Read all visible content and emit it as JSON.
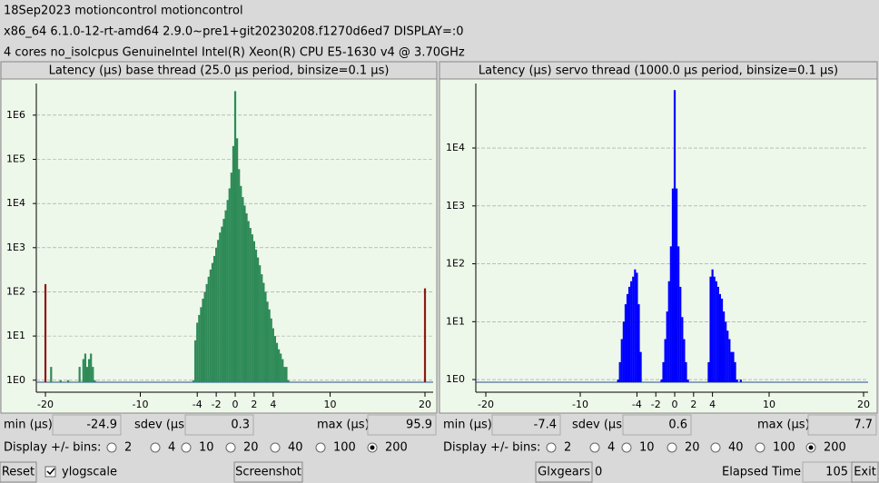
{
  "header": {
    "lines": [
      "18Sep2023 motioncontrol motioncontrol",
      "x86_64  6.1.0-12-rt-amd64  2.9.0~pre1+git20230208.f1270d6ed7  DISPLAY=:0",
      "4 cores  no_isolcpus   GenuineIntel  Intel(R) Xeon(R) CPU E5-1630 v4 @ 3.70GHz"
    ]
  },
  "chart_data": [
    {
      "type": "bar",
      "title": "Latency (µs) base thread (25.0 µs period, binsize=0.1 µs)",
      "log_y": true,
      "grid": true,
      "xlim": [
        -20.96,
        20.86
      ],
      "xticks": [
        -20,
        -10,
        -4,
        -2,
        0,
        2,
        4,
        10,
        20
      ],
      "ylim": [
        0.9,
        5200000
      ],
      "yticks": [
        {
          "value": 1,
          "label": "1E0"
        },
        {
          "value": 10,
          "label": "1E1"
        },
        {
          "value": 100,
          "label": "1E2"
        },
        {
          "value": 1000,
          "label": "1E3"
        },
        {
          "value": 10000,
          "label": "1E4"
        },
        {
          "value": 100000,
          "label": "1E5"
        },
        {
          "value": 1000000,
          "label": "1E6"
        }
      ],
      "series": [
        {
          "color": "#2e8b57",
          "x": [
            -19.4,
            -18.4,
            -17.6,
            -16.4,
            -16.0,
            -15.8,
            -15.6,
            -15.4,
            -15.2,
            -15.0,
            -14.8,
            -4.4,
            -4.2,
            -4.0,
            -3.8,
            -3.6,
            -3.4,
            -3.2,
            -3.0,
            -2.8,
            -2.6,
            -2.4,
            -2.2,
            -2.0,
            -1.8,
            -1.6,
            -1.4,
            -1.2,
            -1.0,
            -0.8,
            -0.6,
            -0.4,
            -0.2,
            0,
            0.2,
            0.4,
            0.6,
            0.8,
            1.0,
            1.2,
            1.4,
            1.6,
            1.8,
            2.0,
            2.2,
            2.4,
            2.6,
            2.8,
            3.0,
            3.2,
            3.4,
            3.6,
            3.8,
            4.0,
            4.2,
            4.4,
            4.6,
            4.8,
            5.0,
            5.2,
            5.4,
            5.6
          ],
          "values": [
            2,
            1,
            1,
            2,
            3,
            4,
            2,
            3,
            4,
            2,
            1,
            1,
            8,
            20,
            30,
            45,
            70,
            100,
            150,
            220,
            320,
            450,
            650,
            1000,
            1500,
            2200,
            3000,
            4500,
            7000,
            12000,
            22000,
            50000,
            200000,
            3500000,
            300000,
            60000,
            25000,
            14000,
            9000,
            6000,
            4000,
            2800,
            2000,
            1400,
            900,
            600,
            400,
            250,
            160,
            100,
            60,
            40,
            25,
            15,
            10,
            7,
            5,
            4,
            3,
            2,
            2,
            1
          ]
        },
        {
          "color": "#8b1a1a",
          "x": [
            -20,
            20
          ],
          "values": [
            150,
            120
          ]
        }
      ]
    },
    {
      "type": "bar",
      "title": "Latency (µs) servo thread (1000.0 µs period, binsize=0.1 µs)",
      "log_y": true,
      "grid": true,
      "xlim": [
        -21.06,
        20.48
      ],
      "xticks": [
        -20,
        -10,
        -4,
        -2,
        0,
        2,
        4,
        10,
        20
      ],
      "ylim": [
        0.9,
        130000
      ],
      "yticks": [
        {
          "value": 1,
          "label": "1E0"
        },
        {
          "value": 10,
          "label": "1E1"
        },
        {
          "value": 100,
          "label": "1E2"
        },
        {
          "value": 1000,
          "label": "1E3"
        },
        {
          "value": 10000,
          "label": "1E4"
        }
      ],
      "series": [
        {
          "color": "#0000ff",
          "x": [
            -6.0,
            -5.8,
            -5.6,
            -5.4,
            -5.2,
            -5.0,
            -4.8,
            -4.6,
            -4.4,
            -4.2,
            -4.0,
            -3.8,
            -3.6,
            -1.4,
            -1.2,
            -1.0,
            -0.8,
            -0.6,
            -0.4,
            -0.2,
            0,
            0.2,
            0.4,
            0.6,
            0.8,
            1.0,
            1.2,
            1.4,
            3.6,
            3.8,
            4.0,
            4.2,
            4.4,
            4.6,
            4.8,
            5.0,
            5.2,
            5.4,
            5.6,
            5.8,
            6.0,
            6.2,
            6.4,
            6.6,
            7.0
          ],
          "values": [
            1,
            2,
            5,
            10,
            20,
            30,
            40,
            50,
            60,
            80,
            70,
            20,
            3,
            1,
            2,
            5,
            15,
            50,
            200,
            2000,
            100000,
            2000,
            200,
            40,
            12,
            5,
            2,
            1,
            2,
            60,
            80,
            60,
            50,
            40,
            30,
            25,
            15,
            10,
            7,
            5,
            3,
            3,
            2,
            1,
            1
          ]
        }
      ]
    }
  ],
  "panels": [
    {
      "min_label": "min (µs)",
      "min": -24.9,
      "sdev_label": "sdev (µs)",
      "sdev": 0.3,
      "max_label": "max (µs)",
      "max": 95.9,
      "bins_label": "Display +/- bins:",
      "bins_options": [
        2,
        4,
        10,
        20,
        40,
        100,
        200
      ],
      "bins_selected": 200
    },
    {
      "min_label": "min (µs)",
      "min": -7.4,
      "sdev_label": "sdev (µs)",
      "sdev": 0.6,
      "max_label": "max (µs)",
      "max": 7.7,
      "bins_label": "Display +/- bins:",
      "bins_options": [
        2,
        4,
        10,
        20,
        40,
        100,
        200
      ],
      "bins_selected": 200
    }
  ],
  "footer": {
    "reset": "Reset",
    "ylogscale": "ylogscale",
    "ylogscale_checked": true,
    "screenshot": "Screenshot",
    "glxgears": "Glxgears",
    "glxgears_count": 0,
    "elapsed_label": "Elapsed Time:",
    "elapsed": 105,
    "exit": "Exit"
  }
}
